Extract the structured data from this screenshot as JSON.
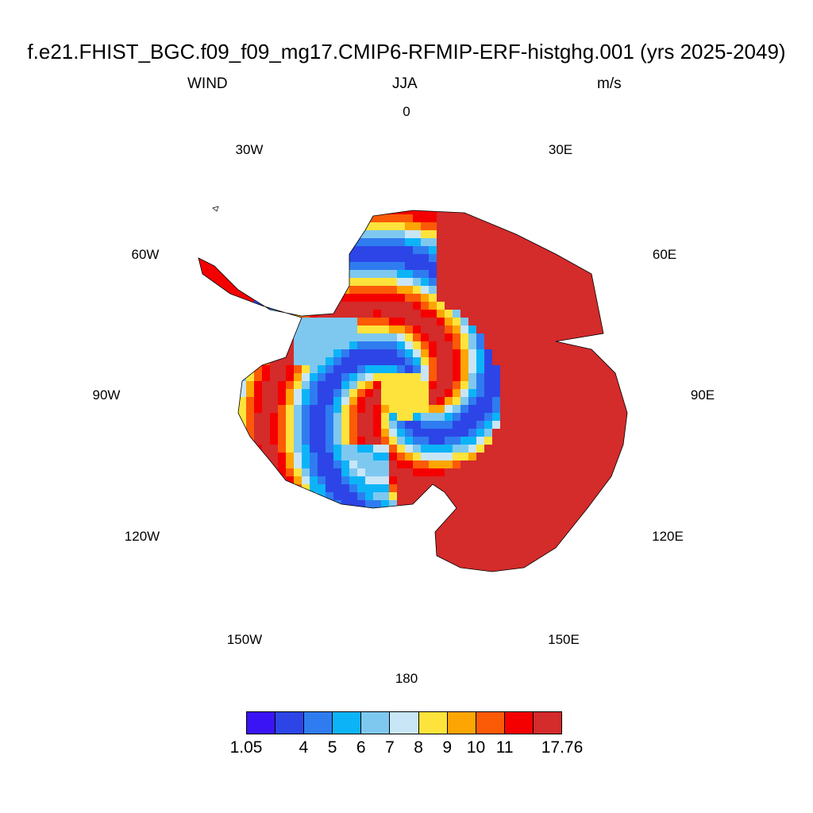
{
  "header": {
    "title": "f.e21.FHIST_BGC.f09_f09_mg17.CMIP6-RFMIP-ERF-histghg.001 (yrs 2025-2049)",
    "variable": "WIND",
    "season": "JJA",
    "units": "m/s"
  },
  "longitude_labels": [
    "0",
    "30E",
    "60E",
    "90E",
    "120E",
    "150E",
    "180",
    "150W",
    "120W",
    "90W",
    "60W",
    "30W"
  ],
  "colorbar": {
    "labels": [
      "1.05",
      "4",
      "5",
      "6",
      "7",
      "8",
      "9",
      "10",
      "11",
      "17.76"
    ],
    "colors": [
      "#3b14f5",
      "#2d45e6",
      "#2f7cf0",
      "#0cb4f7",
      "#7ec8f0",
      "#c8e6f6",
      "#fde33b",
      "#fda502",
      "#fb5a06",
      "#f50000",
      "#d42b2b"
    ]
  },
  "map": {
    "projection": "south-polar-stereographic",
    "region": "Antarctica",
    "field": "WIND",
    "colormap": "colorbar.colors"
  }
}
